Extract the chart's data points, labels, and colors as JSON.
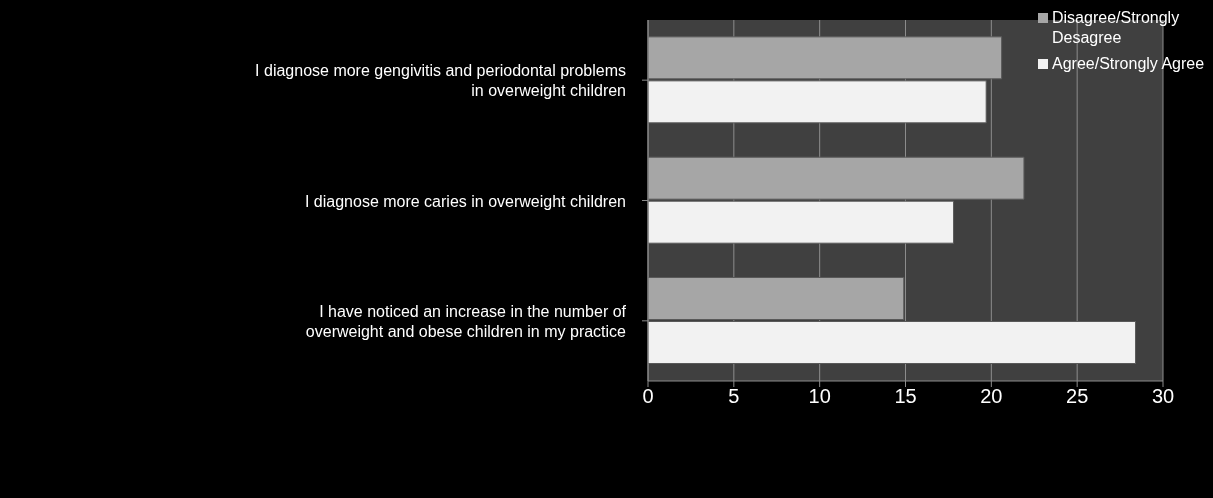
{
  "chart_data": {
    "type": "bar",
    "orientation": "horizontal",
    "categories": [
      "I diagnose more gengivitis and periodontal problems in overweight children",
      "I diagnose more caries in overweight children",
      "I have noticed an increase in the number of overweight and obese children in my practice"
    ],
    "series": [
      {
        "name": "Disagree/Strongly Desagree",
        "color": "#a6a6a6",
        "values": [
          20.6,
          21.9,
          14.9
        ]
      },
      {
        "name": "Agree/Strongly Agree",
        "color": "#f2f2f2",
        "values": [
          19.7,
          17.8,
          28.4
        ]
      }
    ],
    "xlim": [
      0,
      30
    ],
    "xticks": [
      0,
      5,
      10,
      15,
      20,
      25,
      30
    ],
    "grid": "x",
    "legend": "top right"
  }
}
